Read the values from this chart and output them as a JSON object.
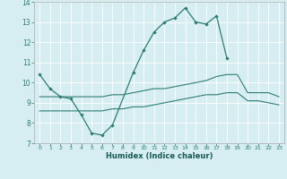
{
  "xlabel": "Humidex (Indice chaleur)",
  "background_color": "#d6eef2",
  "grid_color": "#ffffff",
  "line_color": "#2e7d72",
  "xlim": [
    -0.5,
    23.5
  ],
  "ylim": [
    7,
    14
  ],
  "x_ticks": [
    0,
    1,
    2,
    3,
    4,
    5,
    6,
    7,
    8,
    9,
    10,
    11,
    12,
    13,
    14,
    15,
    16,
    17,
    18,
    19,
    20,
    21,
    22,
    23
  ],
  "y_ticks": [
    7,
    8,
    9,
    10,
    11,
    12,
    13,
    14
  ],
  "line1_x": [
    0,
    1,
    2,
    3,
    4,
    5,
    6,
    7,
    9,
    10,
    11,
    12,
    13,
    14,
    15,
    16,
    17,
    18
  ],
  "line1_y": [
    10.4,
    9.7,
    9.3,
    9.2,
    8.4,
    7.5,
    7.4,
    7.9,
    10.5,
    11.6,
    12.5,
    13.0,
    13.2,
    13.7,
    13.0,
    12.9,
    13.3,
    11.2
  ],
  "line2_x": [
    0,
    1,
    2,
    3,
    4,
    5,
    6,
    7,
    8,
    9,
    10,
    11,
    12,
    13,
    14,
    15,
    16,
    17,
    18,
    19,
    20,
    21,
    22,
    23
  ],
  "line2_y": [
    9.3,
    9.3,
    9.3,
    9.3,
    9.3,
    9.3,
    9.3,
    9.4,
    9.4,
    9.5,
    9.6,
    9.7,
    9.7,
    9.8,
    9.9,
    10.0,
    10.1,
    10.3,
    10.4,
    10.4,
    9.5,
    9.5,
    9.5,
    9.3
  ],
  "line3_x": [
    0,
    1,
    2,
    3,
    4,
    5,
    6,
    7,
    8,
    9,
    10,
    11,
    12,
    13,
    14,
    15,
    16,
    17,
    18,
    19,
    20,
    21,
    22,
    23
  ],
  "line3_y": [
    8.6,
    8.6,
    8.6,
    8.6,
    8.6,
    8.6,
    8.6,
    8.7,
    8.7,
    8.8,
    8.8,
    8.9,
    9.0,
    9.1,
    9.2,
    9.3,
    9.4,
    9.4,
    9.5,
    9.5,
    9.1,
    9.1,
    9.0,
    8.9
  ]
}
